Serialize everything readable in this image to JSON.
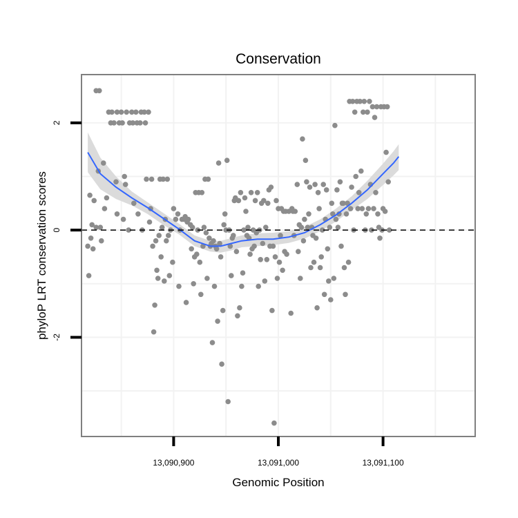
{
  "chart_data": {
    "type": "scatter",
    "title": "Conservation",
    "xlabel": "Genomic Position",
    "ylabel": "phyloP LRT conservation scores",
    "xlim": [
      13090812,
      13091188
    ],
    "ylim": [
      -3.85,
      2.9
    ],
    "x_ticks": [
      {
        "value": 13090900,
        "label": "13,090,900"
      },
      {
        "value": 13091000,
        "label": "13,091,000"
      },
      {
        "value": 13091100,
        "label": "13,091,100"
      }
    ],
    "y_ticks": [
      {
        "value": -2,
        "label": "-2"
      },
      {
        "value": 0,
        "label": "0"
      },
      {
        "value": 2,
        "label": "2"
      }
    ],
    "reference_line": {
      "y": 0,
      "style": "dashed"
    },
    "colors": {
      "points": "#8c8c8c",
      "smooth": "#3366ff",
      "band": "#d9d9d9",
      "grid": "#f2f2f2",
      "frame": "#7f7f7f"
    },
    "points": [
      [
        13090818,
        -0.3
      ],
      [
        13090819,
        -0.85
      ],
      [
        13090820,
        0.65
      ],
      [
        13090821,
        -0.15
      ],
      [
        13090822,
        0.1
      ],
      [
        13090823,
        -0.35
      ],
      [
        13090824,
        0.55
      ],
      [
        13090826,
        2.6
      ],
      [
        13090829,
        2.6
      ],
      [
        13090826,
        0.05
      ],
      [
        13090828,
        1.1
      ],
      [
        13090830,
        0.05
      ],
      [
        13090831,
        -0.2
      ],
      [
        13090833,
        1.25
      ],
      [
        13090834,
        0.4
      ],
      [
        13090836,
        0.6
      ],
      [
        13090838,
        2.2
      ],
      [
        13090840,
        2.0
      ],
      [
        13090841,
        2.2
      ],
      [
        13090843,
        2.0
      ],
      [
        13090845,
        0.9
      ],
      [
        13090846,
        0.3
      ],
      [
        13090846,
        2.2
      ],
      [
        13090848,
        2.0
      ],
      [
        13090850,
        2.2
      ],
      [
        13090851,
        2.0
      ],
      [
        13090852,
        0.2
      ],
      [
        13090853,
        1.0
      ],
      [
        13090854,
        0.85
      ],
      [
        13090855,
        2.2
      ],
      [
        13090857,
        0.0
      ],
      [
        13090858,
        2.0
      ],
      [
        13090860,
        2.2
      ],
      [
        13090861,
        2.0
      ],
      [
        13090862,
        0.5
      ],
      [
        13090864,
        2.2
      ],
      [
        13090865,
        2.0
      ],
      [
        13090866,
        0.3
      ],
      [
        13090868,
        2.0
      ],
      [
        13090869,
        2.2
      ],
      [
        13090870,
        0.0
      ],
      [
        13090872,
        2.2
      ],
      [
        13090873,
        2.0
      ],
      [
        13090874,
        0.95
      ],
      [
        13090876,
        2.2
      ],
      [
        13090877,
        0.15
      ],
      [
        13090878,
        0.4
      ],
      [
        13090879,
        0.95
      ],
      [
        13090880,
        -0.3
      ],
      [
        13090881,
        -1.9
      ],
      [
        13090882,
        -1.4
      ],
      [
        13090883,
        -0.2
      ],
      [
        13090884,
        -0.75
      ],
      [
        13090885,
        -0.9
      ],
      [
        13090886,
        -0.1
      ],
      [
        13090887,
        0.95
      ],
      [
        13090888,
        -0.5
      ],
      [
        13090889,
        0.05
      ],
      [
        13090890,
        0.95
      ],
      [
        13090891,
        -0.95
      ],
      [
        13090892,
        0.2
      ],
      [
        13090893,
        -0.2
      ],
      [
        13090894,
        0.95
      ],
      [
        13090895,
        -0.1
      ],
      [
        13090896,
        -0.85
      ],
      [
        13090897,
        0.0
      ],
      [
        13090899,
        -0.6
      ],
      [
        13090900,
        0.4
      ],
      [
        13090902,
        0.2
      ],
      [
        13090904,
        0.3
      ],
      [
        13090905,
        -1.05
      ],
      [
        13090906,
        0.0
      ],
      [
        13090908,
        0.2
      ],
      [
        13090910,
        0.2
      ],
      [
        13090911,
        0.25
      ],
      [
        13090912,
        -1.35
      ],
      [
        13090913,
        0.15
      ],
      [
        13090914,
        0.2
      ],
      [
        13090916,
        0.1
      ],
      [
        13090917,
        -0.35
      ],
      [
        13090918,
        0.05
      ],
      [
        13090919,
        -1.0
      ],
      [
        13090920,
        -0.5
      ],
      [
        13090921,
        0.7
      ],
      [
        13090922,
        -0.45
      ],
      [
        13090923,
        0.0
      ],
      [
        13090924,
        0.7
      ],
      [
        13090925,
        -0.6
      ],
      [
        13090926,
        -1.2
      ],
      [
        13090927,
        0.7
      ],
      [
        13090928,
        -0.3
      ],
      [
        13090929,
        0.05
      ],
      [
        13090930,
        0.95
      ],
      [
        13090931,
        -0.05
      ],
      [
        13090932,
        -0.9
      ],
      [
        13090933,
        0.95
      ],
      [
        13090934,
        -0.15
      ],
      [
        13090935,
        -0.3
      ],
      [
        13090936,
        -0.25
      ],
      [
        13090937,
        -2.1
      ],
      [
        13090938,
        -0.2
      ],
      [
        13090939,
        -1.05
      ],
      [
        13090940,
        -0.3
      ],
      [
        13090941,
        -0.35
      ],
      [
        13090942,
        -1.7
      ],
      [
        13090943,
        1.25
      ],
      [
        13090944,
        -0.25
      ],
      [
        13090945,
        -0.5
      ],
      [
        13090946,
        -2.5
      ],
      [
        13090947,
        -1.5
      ],
      [
        13090948,
        0.1
      ],
      [
        13090949,
        0.3
      ],
      [
        13090950,
        0.0
      ],
      [
        13090951,
        1.3
      ],
      [
        13090952,
        -3.2
      ],
      [
        13090953,
        0.0
      ],
      [
        13090954,
        -0.3
      ],
      [
        13090955,
        -0.85
      ],
      [
        13090956,
        -0.15
      ],
      [
        13090957,
        -0.1
      ],
      [
        13090958,
        0.55
      ],
      [
        13090959,
        0.6
      ],
      [
        13090960,
        -0.4
      ],
      [
        13090961,
        -1.6
      ],
      [
        13090962,
        0.55
      ],
      [
        13090963,
        -1.45
      ],
      [
        13090964,
        0.7
      ],
      [
        13090965,
        -1.05
      ],
      [
        13090966,
        -0.8
      ],
      [
        13090967,
        0.0
      ],
      [
        13090968,
        0.6
      ],
      [
        13090969,
        0.35
      ],
      [
        13090970,
        -0.1
      ],
      [
        13090971,
        0.05
      ],
      [
        13090972,
        -0.15
      ],
      [
        13090973,
        -0.45
      ],
      [
        13090974,
        0.7
      ],
      [
        13090975,
        -0.35
      ],
      [
        13090976,
        0.0
      ],
      [
        13090977,
        -0.3
      ],
      [
        13090978,
        0.55
      ],
      [
        13090979,
        -0.05
      ],
      [
        13090980,
        0.7
      ],
      [
        13090981,
        -1.05
      ],
      [
        13090982,
        0.0
      ],
      [
        13090983,
        -0.55
      ],
      [
        13090984,
        0.5
      ],
      [
        13090985,
        -0.25
      ],
      [
        13090986,
        0.55
      ],
      [
        13090987,
        -0.95
      ],
      [
        13090988,
        0.05
      ],
      [
        13090989,
        -0.55
      ],
      [
        13090990,
        0.5
      ],
      [
        13090991,
        0.75
      ],
      [
        13090992,
        -0.3
      ],
      [
        13090993,
        0.8
      ],
      [
        13090994,
        -1.5
      ],
      [
        13090995,
        -0.3
      ],
      [
        13090996,
        -3.6
      ],
      [
        13090997,
        -0.5
      ],
      [
        13090998,
        0.55
      ],
      [
        13090999,
        -0.9
      ],
      [
        13091000,
        0.4
      ],
      [
        13091001,
        -0.6
      ],
      [
        13091002,
        -0.1
      ],
      [
        13091003,
        0.4
      ],
      [
        13091004,
        -0.75
      ],
      [
        13091005,
        0.35
      ],
      [
        13091006,
        -0.4
      ],
      [
        13091007,
        0.35
      ],
      [
        13091008,
        -0.45
      ],
      [
        13091010,
        0.35
      ],
      [
        13091012,
        -1.55
      ],
      [
        13091013,
        0.4
      ],
      [
        13091014,
        0.35
      ],
      [
        13091015,
        -0.1
      ],
      [
        13091016,
        0.35
      ],
      [
        13091018,
        0.85
      ],
      [
        13091019,
        -0.4
      ],
      [
        13091020,
        0.1
      ],
      [
        13091021,
        -0.9
      ],
      [
        13091022,
        0.05
      ],
      [
        13091023,
        1.7
      ],
      [
        13091024,
        -0.2
      ],
      [
        13091025,
        0.2
      ],
      [
        13091026,
        1.3
      ],
      [
        13091027,
        0.9
      ],
      [
        13091028,
        0.05
      ],
      [
        13091029,
        0.3
      ],
      [
        13091030,
        0.8
      ],
      [
        13091031,
        -0.7
      ],
      [
        13091032,
        0.05
      ],
      [
        13091033,
        -0.1
      ],
      [
        13091034,
        -0.6
      ],
      [
        13091035,
        0.85
      ],
      [
        13091036,
        -0.15
      ],
      [
        13091037,
        -1.45
      ],
      [
        13091038,
        0.7
      ],
      [
        13091039,
        0.4
      ],
      [
        13091040,
        -0.7
      ],
      [
        13091041,
        -0.5
      ],
      [
        13091042,
        0.0
      ],
      [
        13091043,
        0.85
      ],
      [
        13091044,
        -1.2
      ],
      [
        13091045,
        0.2
      ],
      [
        13091046,
        0.75
      ],
      [
        13091047,
        -0.35
      ],
      [
        13091048,
        -0.95
      ],
      [
        13091049,
        0.05
      ],
      [
        13091050,
        -1.3
      ],
      [
        13091051,
        0.5
      ],
      [
        13091052,
        0.3
      ],
      [
        13091053,
        -0.9
      ],
      [
        13091054,
        1.95
      ],
      [
        13091055,
        0.2
      ],
      [
        13091056,
        0.75
      ],
      [
        13091057,
        0.05
      ],
      [
        13091058,
        0.3
      ],
      [
        13091059,
        0.9
      ],
      [
        13091060,
        -0.3
      ],
      [
        13091061,
        0.5
      ],
      [
        13091062,
        0.5
      ],
      [
        13091063,
        -0.7
      ],
      [
        13091064,
        -1.2
      ],
      [
        13091065,
        0.3
      ],
      [
        13091066,
        0.5
      ],
      [
        13091067,
        -0.6
      ],
      [
        13091068,
        2.4
      ],
      [
        13091069,
        0.4
      ],
      [
        13091070,
        0.8
      ],
      [
        13091071,
        2.4
      ],
      [
        13091072,
        0.0
      ],
      [
        13091073,
        2.2
      ],
      [
        13091074,
        1.0
      ],
      [
        13091075,
        2.4
      ],
      [
        13091076,
        0.4
      ],
      [
        13091077,
        0.7
      ],
      [
        13091078,
        2.4
      ],
      [
        13091079,
        1.1
      ],
      [
        13091080,
        0.4
      ],
      [
        13091081,
        2.2
      ],
      [
        13091082,
        2.4
      ],
      [
        13091083,
        0.0
      ],
      [
        13091084,
        0.3
      ],
      [
        13091085,
        2.2
      ],
      [
        13091086,
        0.4
      ],
      [
        13091087,
        2.4
      ],
      [
        13091088,
        0.85
      ],
      [
        13091089,
        0.0
      ],
      [
        13091090,
        2.3
      ],
      [
        13091091,
        0.4
      ],
      [
        13091092,
        2.1
      ],
      [
        13091093,
        0.7
      ],
      [
        13091094,
        2.3
      ],
      [
        13091095,
        0.3
      ],
      [
        13091096,
        0.05
      ],
      [
        13091097,
        -0.15
      ],
      [
        13091098,
        2.3
      ],
      [
        13091099,
        0.0
      ],
      [
        13091100,
        0.4
      ],
      [
        13091101,
        2.3
      ],
      [
        13091102,
        0.35
      ],
      [
        13091103,
        1.45
      ],
      [
        13091104,
        2.3
      ],
      [
        13091105,
        0.9
      ],
      [
        13091106,
        0.0
      ]
    ],
    "smooth": [
      [
        13090818,
        1.45
      ],
      [
        13090830,
        1.05
      ],
      [
        13090845,
        0.8
      ],
      [
        13090860,
        0.6
      ],
      [
        13090875,
        0.42
      ],
      [
        13090890,
        0.22
      ],
      [
        13090905,
        0.02
      ],
      [
        13090920,
        -0.2
      ],
      [
        13090935,
        -0.3
      ],
      [
        13090945,
        -0.3
      ],
      [
        13090955,
        -0.25
      ],
      [
        13090965,
        -0.2
      ],
      [
        13090980,
        -0.17
      ],
      [
        13090995,
        -0.17
      ],
      [
        13091010,
        -0.13
      ],
      [
        13091025,
        -0.05
      ],
      [
        13091040,
        0.1
      ],
      [
        13091055,
        0.28
      ],
      [
        13091070,
        0.5
      ],
      [
        13091085,
        0.75
      ],
      [
        13091100,
        1.05
      ],
      [
        13091110,
        1.25
      ],
      [
        13091115,
        1.37
      ]
    ],
    "band_upper": [
      1.82,
      1.35,
      1.0,
      0.72,
      0.52,
      0.32,
      0.12,
      -0.1,
      -0.2,
      -0.2,
      -0.15,
      -0.1,
      -0.06,
      -0.05,
      -0.02,
      0.06,
      0.2,
      0.4,
      0.63,
      0.92,
      1.24,
      1.47,
      1.6
    ],
    "band_lower": [
      1.08,
      0.76,
      0.58,
      0.46,
      0.3,
      0.1,
      -0.08,
      -0.3,
      -0.4,
      -0.42,
      -0.38,
      -0.32,
      -0.3,
      -0.28,
      -0.24,
      -0.16,
      -0.02,
      0.16,
      0.37,
      0.58,
      0.84,
      1.02,
      1.12
    ]
  }
}
